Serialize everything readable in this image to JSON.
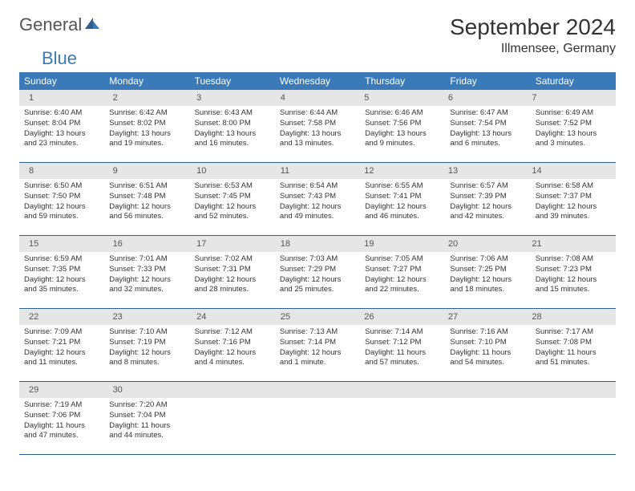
{
  "logo": {
    "general": "General",
    "blue": "Blue"
  },
  "title": "September 2024",
  "location": "Illmensee, Germany",
  "colors": {
    "header_bg": "#3a7ab8",
    "header_text": "#ffffff",
    "daynum_bg": "#e6e6e6",
    "daynum_text": "#555555",
    "border": "#2f5f8f",
    "body_text": "#333333"
  },
  "daynames": [
    "Sunday",
    "Monday",
    "Tuesday",
    "Wednesday",
    "Thursday",
    "Friday",
    "Saturday"
  ],
  "weeks": [
    {
      "nums": [
        "1",
        "2",
        "3",
        "4",
        "5",
        "6",
        "7"
      ],
      "cells": [
        {
          "sunrise": "Sunrise: 6:40 AM",
          "sunset": "Sunset: 8:04 PM",
          "daylight": "Daylight: 13 hours and 23 minutes."
        },
        {
          "sunrise": "Sunrise: 6:42 AM",
          "sunset": "Sunset: 8:02 PM",
          "daylight": "Daylight: 13 hours and 19 minutes."
        },
        {
          "sunrise": "Sunrise: 6:43 AM",
          "sunset": "Sunset: 8:00 PM",
          "daylight": "Daylight: 13 hours and 16 minutes."
        },
        {
          "sunrise": "Sunrise: 6:44 AM",
          "sunset": "Sunset: 7:58 PM",
          "daylight": "Daylight: 13 hours and 13 minutes."
        },
        {
          "sunrise": "Sunrise: 6:46 AM",
          "sunset": "Sunset: 7:56 PM",
          "daylight": "Daylight: 13 hours and 9 minutes."
        },
        {
          "sunrise": "Sunrise: 6:47 AM",
          "sunset": "Sunset: 7:54 PM",
          "daylight": "Daylight: 13 hours and 6 minutes."
        },
        {
          "sunrise": "Sunrise: 6:49 AM",
          "sunset": "Sunset: 7:52 PM",
          "daylight": "Daylight: 13 hours and 3 minutes."
        }
      ]
    },
    {
      "nums": [
        "8",
        "9",
        "10",
        "11",
        "12",
        "13",
        "14"
      ],
      "cells": [
        {
          "sunrise": "Sunrise: 6:50 AM",
          "sunset": "Sunset: 7:50 PM",
          "daylight": "Daylight: 12 hours and 59 minutes."
        },
        {
          "sunrise": "Sunrise: 6:51 AM",
          "sunset": "Sunset: 7:48 PM",
          "daylight": "Daylight: 12 hours and 56 minutes."
        },
        {
          "sunrise": "Sunrise: 6:53 AM",
          "sunset": "Sunset: 7:45 PM",
          "daylight": "Daylight: 12 hours and 52 minutes."
        },
        {
          "sunrise": "Sunrise: 6:54 AM",
          "sunset": "Sunset: 7:43 PM",
          "daylight": "Daylight: 12 hours and 49 minutes."
        },
        {
          "sunrise": "Sunrise: 6:55 AM",
          "sunset": "Sunset: 7:41 PM",
          "daylight": "Daylight: 12 hours and 46 minutes."
        },
        {
          "sunrise": "Sunrise: 6:57 AM",
          "sunset": "Sunset: 7:39 PM",
          "daylight": "Daylight: 12 hours and 42 minutes."
        },
        {
          "sunrise": "Sunrise: 6:58 AM",
          "sunset": "Sunset: 7:37 PM",
          "daylight": "Daylight: 12 hours and 39 minutes."
        }
      ]
    },
    {
      "nums": [
        "15",
        "16",
        "17",
        "18",
        "19",
        "20",
        "21"
      ],
      "cells": [
        {
          "sunrise": "Sunrise: 6:59 AM",
          "sunset": "Sunset: 7:35 PM",
          "daylight": "Daylight: 12 hours and 35 minutes."
        },
        {
          "sunrise": "Sunrise: 7:01 AM",
          "sunset": "Sunset: 7:33 PM",
          "daylight": "Daylight: 12 hours and 32 minutes."
        },
        {
          "sunrise": "Sunrise: 7:02 AM",
          "sunset": "Sunset: 7:31 PM",
          "daylight": "Daylight: 12 hours and 28 minutes."
        },
        {
          "sunrise": "Sunrise: 7:03 AM",
          "sunset": "Sunset: 7:29 PM",
          "daylight": "Daylight: 12 hours and 25 minutes."
        },
        {
          "sunrise": "Sunrise: 7:05 AM",
          "sunset": "Sunset: 7:27 PM",
          "daylight": "Daylight: 12 hours and 22 minutes."
        },
        {
          "sunrise": "Sunrise: 7:06 AM",
          "sunset": "Sunset: 7:25 PM",
          "daylight": "Daylight: 12 hours and 18 minutes."
        },
        {
          "sunrise": "Sunrise: 7:08 AM",
          "sunset": "Sunset: 7:23 PM",
          "daylight": "Daylight: 12 hours and 15 minutes."
        }
      ]
    },
    {
      "nums": [
        "22",
        "23",
        "24",
        "25",
        "26",
        "27",
        "28"
      ],
      "cells": [
        {
          "sunrise": "Sunrise: 7:09 AM",
          "sunset": "Sunset: 7:21 PM",
          "daylight": "Daylight: 12 hours and 11 minutes."
        },
        {
          "sunrise": "Sunrise: 7:10 AM",
          "sunset": "Sunset: 7:19 PM",
          "daylight": "Daylight: 12 hours and 8 minutes."
        },
        {
          "sunrise": "Sunrise: 7:12 AM",
          "sunset": "Sunset: 7:16 PM",
          "daylight": "Daylight: 12 hours and 4 minutes."
        },
        {
          "sunrise": "Sunrise: 7:13 AM",
          "sunset": "Sunset: 7:14 PM",
          "daylight": "Daylight: 12 hours and 1 minute."
        },
        {
          "sunrise": "Sunrise: 7:14 AM",
          "sunset": "Sunset: 7:12 PM",
          "daylight": "Daylight: 11 hours and 57 minutes."
        },
        {
          "sunrise": "Sunrise: 7:16 AM",
          "sunset": "Sunset: 7:10 PM",
          "daylight": "Daylight: 11 hours and 54 minutes."
        },
        {
          "sunrise": "Sunrise: 7:17 AM",
          "sunset": "Sunset: 7:08 PM",
          "daylight": "Daylight: 11 hours and 51 minutes."
        }
      ]
    },
    {
      "nums": [
        "29",
        "30",
        "",
        "",
        "",
        "",
        ""
      ],
      "cells": [
        {
          "sunrise": "Sunrise: 7:19 AM",
          "sunset": "Sunset: 7:06 PM",
          "daylight": "Daylight: 11 hours and 47 minutes."
        },
        {
          "sunrise": "Sunrise: 7:20 AM",
          "sunset": "Sunset: 7:04 PM",
          "daylight": "Daylight: 11 hours and 44 minutes."
        },
        null,
        null,
        null,
        null,
        null
      ]
    }
  ]
}
